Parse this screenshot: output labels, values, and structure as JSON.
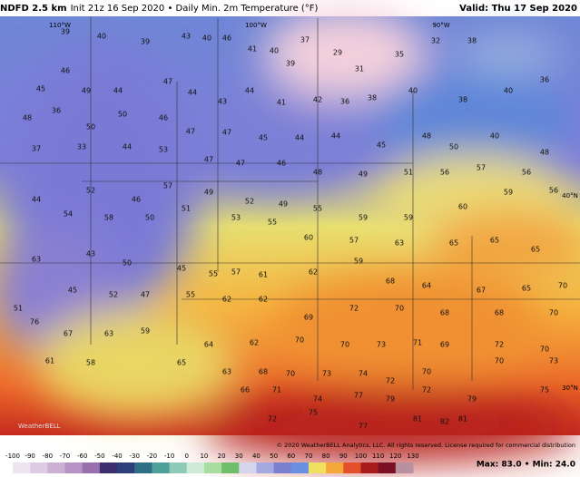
{
  "header": {
    "model": "NDFD 2.5 km",
    "subtitle": "Init 21z 16 Sep 2020 • Daily Min. 2m Temperature (°F)",
    "valid": "Valid: Thu 17 Sep 2020"
  },
  "grid_labels": [
    "110°W",
    "100°W",
    "90°W",
    "40°N",
    "30°N"
  ],
  "stations": [
    39,
    40,
    39,
    43,
    40,
    46,
    41,
    40,
    39,
    37,
    29,
    31,
    35,
    32,
    38,
    36,
    46,
    45,
    49,
    44,
    47,
    44,
    43,
    44,
    41,
    42,
    36,
    38,
    40,
    38,
    40,
    48,
    36,
    50,
    50,
    46,
    47,
    47,
    45,
    44,
    44,
    45,
    48,
    50,
    40,
    48,
    37,
    33,
    44,
    53,
    47,
    47,
    46,
    48,
    49,
    51,
    56,
    57,
    56,
    44,
    52,
    46,
    57,
    49,
    52,
    49,
    55,
    59,
    59,
    60,
    59,
    56,
    54,
    58,
    50,
    51,
    53,
    55,
    60,
    57,
    63,
    65,
    65,
    65,
    63,
    43,
    50,
    45,
    55,
    57,
    61,
    62,
    59,
    68,
    64,
    67,
    65,
    70,
    51,
    45,
    52,
    47,
    55,
    62,
    62,
    69,
    72,
    70,
    68,
    68,
    70,
    76,
    67,
    63,
    59,
    64,
    62,
    70,
    70,
    73,
    71,
    69,
    72,
    70,
    61,
    58,
    65,
    63,
    68,
    70,
    73,
    74,
    72,
    70,
    70,
    73,
    66,
    71,
    74,
    77,
    79,
    72,
    79,
    75,
    72,
    75,
    77,
    81,
    82,
    81
  ],
  "footer": {
    "copyright": "© 2020 WeatherBELL Analytics, LLC. All rights reserved. License required for commercial distribution",
    "stats": "Max: 83.0 • Min: 24.0",
    "logo": "WeatherBELL"
  },
  "colorbar": {
    "ticks": [
      -100,
      -90,
      -80,
      -70,
      -60,
      -50,
      -40,
      -30,
      -20,
      -10,
      0,
      10,
      20,
      30,
      40,
      50,
      60,
      70,
      80,
      90,
      100,
      110,
      120,
      130
    ],
    "colors": [
      "#ece4ee",
      "#dccbe2",
      "#cbb0d4",
      "#b792c4",
      "#9a6fae",
      "#3c2f6e",
      "#2c3f7a",
      "#2f6f86",
      "#4f9f9a",
      "#8fc9b8",
      "#cdebd6",
      "#a8dca0",
      "#6fbf6a",
      "#d4d4ec",
      "#a6a8e0",
      "#7b7fd0",
      "#6a8ee0",
      "#f0e060",
      "#f5a83a",
      "#e4502a",
      "#a81c1c",
      "#7a1024",
      "#b890a0"
    ]
  }
}
